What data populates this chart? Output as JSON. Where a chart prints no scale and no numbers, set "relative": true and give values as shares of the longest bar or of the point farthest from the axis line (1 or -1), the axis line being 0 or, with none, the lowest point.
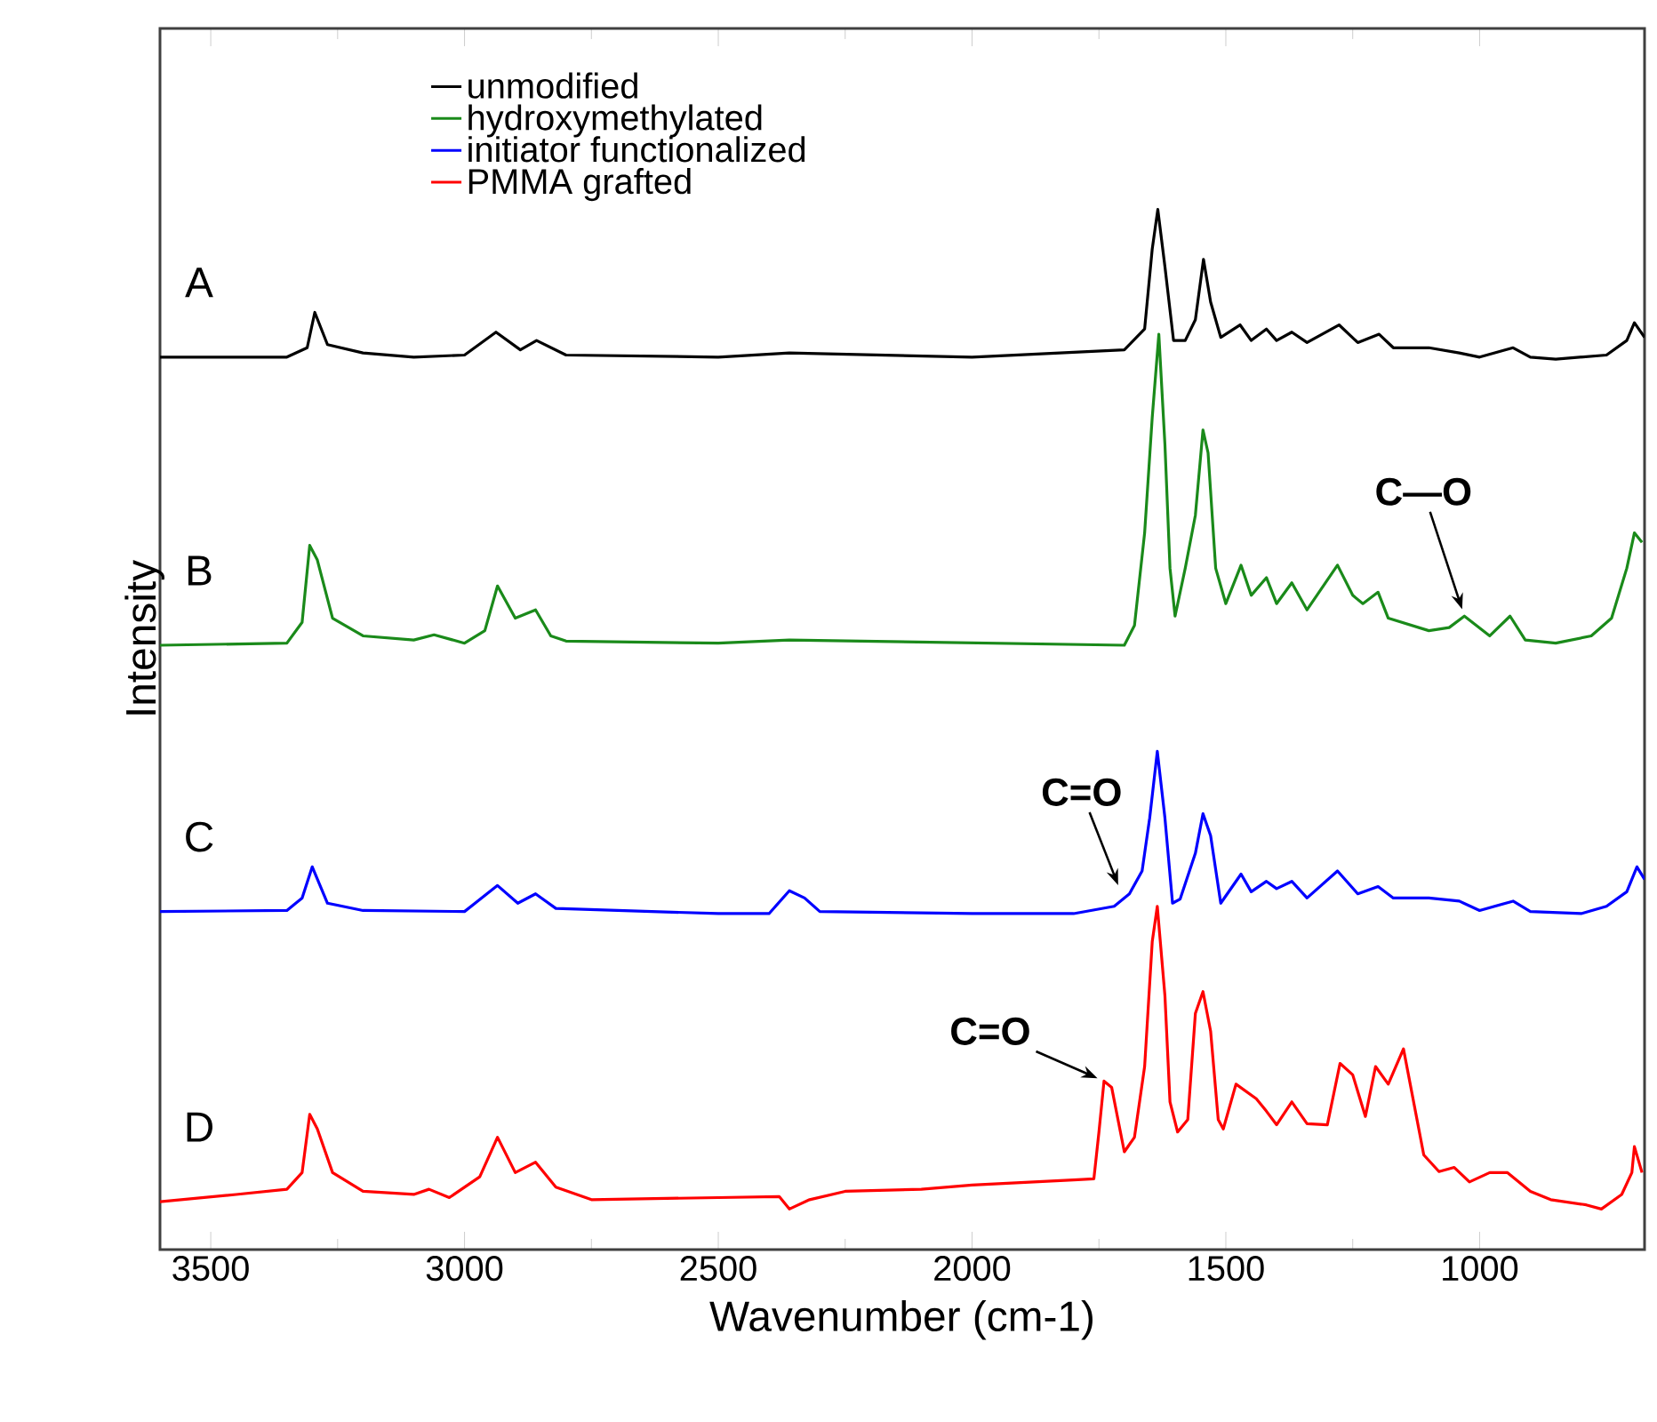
{
  "chart_data": {
    "type": "line",
    "relative": true,
    "xlabel": "Wavenumber (cm-1)",
    "ylabel": "Intensity",
    "xlim": [
      3600,
      675
    ],
    "xticks": [
      3500,
      3000,
      2500,
      2000,
      1500,
      1000
    ],
    "legend": "top",
    "grid": false,
    "marker": "none",
    "line_style": "solid",
    "annotations": [
      "A",
      "B",
      "C",
      "D",
      {
        "text": "C—O",
        "x": 1030,
        "y": 0.609
      },
      {
        "text": "C=O",
        "x": 1707,
        "y": 0.344
      },
      {
        "text": "C=O",
        "x": 1740,
        "y": 0.162
      }
    ],
    "series": [
      {
        "name": "unmodified",
        "color": "#000000",
        "x": [
          3600,
          3350,
          3310,
          3295,
          3270,
          3200,
          3100,
          3000,
          2938,
          2890,
          2858,
          2800,
          2500,
          2360,
          2000,
          1700,
          1660,
          1645,
          1634,
          1620,
          1603,
          1580,
          1560,
          1544,
          1530,
          1510,
          1472,
          1450,
          1420,
          1400,
          1370,
          1340,
          1277,
          1240,
          1198,
          1170,
          1100,
          1040,
          1000,
          934,
          900,
          850,
          750,
          710,
          695,
          675
        ],
        "values": [
          0.858,
          0.858,
          0.867,
          0.901,
          0.87,
          0.862,
          0.858,
          0.86,
          0.882,
          0.865,
          0.874,
          0.86,
          0.858,
          0.862,
          0.858,
          0.865,
          0.885,
          0.962,
          1.0,
          0.945,
          0.874,
          0.874,
          0.894,
          0.952,
          0.911,
          0.877,
          0.889,
          0.874,
          0.885,
          0.874,
          0.882,
          0.872,
          0.889,
          0.872,
          0.88,
          0.867,
          0.867,
          0.862,
          0.858,
          0.867,
          0.858,
          0.856,
          0.86,
          0.874,
          0.891,
          0.877
        ]
      },
      {
        "name": "hydroxymethylated",
        "color": "#1a8a1a",
        "x": [
          3600,
          3350,
          3320,
          3305,
          3290,
          3260,
          3200,
          3100,
          3060,
          3000,
          2960,
          2935,
          2900,
          2860,
          2830,
          2800,
          2500,
          2360,
          1700,
          1680,
          1660,
          1645,
          1632,
          1620,
          1610,
          1600,
          1580,
          1560,
          1545,
          1535,
          1520,
          1500,
          1470,
          1450,
          1420,
          1400,
          1370,
          1340,
          1280,
          1250,
          1230,
          1200,
          1180,
          1100,
          1060,
          1030,
          980,
          940,
          910,
          850,
          780,
          740,
          710,
          695,
          680
        ],
        "values": [
          0.581,
          0.583,
          0.603,
          0.677,
          0.663,
          0.607,
          0.59,
          0.586,
          0.591,
          0.583,
          0.595,
          0.638,
          0.607,
          0.615,
          0.59,
          0.585,
          0.583,
          0.586,
          0.581,
          0.6,
          0.689,
          0.8,
          0.88,
          0.774,
          0.655,
          0.609,
          0.655,
          0.706,
          0.788,
          0.766,
          0.655,
          0.621,
          0.658,
          0.629,
          0.646,
          0.621,
          0.641,
          0.615,
          0.658,
          0.629,
          0.621,
          0.632,
          0.607,
          0.595,
          0.598,
          0.609,
          0.59,
          0.609,
          0.586,
          0.583,
          0.59,
          0.607,
          0.655,
          0.689,
          0.68
        ]
      },
      {
        "name": "initiator functionalized",
        "color": "#0000ff",
        "x": [
          3600,
          3350,
          3320,
          3300,
          3270,
          3200,
          3000,
          2935,
          2895,
          2860,
          2820,
          2500,
          2400,
          2360,
          2330,
          2300,
          2000,
          1800,
          1720,
          1690,
          1665,
          1650,
          1635,
          1620,
          1605,
          1590,
          1560,
          1545,
          1530,
          1510,
          1470,
          1450,
          1420,
          1400,
          1370,
          1340,
          1280,
          1240,
          1200,
          1170,
          1100,
          1040,
          1000,
          934,
          900,
          800,
          750,
          710,
          690,
          675
        ],
        "values": [
          0.325,
          0.326,
          0.338,
          0.368,
          0.333,
          0.326,
          0.325,
          0.35,
          0.333,
          0.342,
          0.328,
          0.323,
          0.323,
          0.345,
          0.338,
          0.325,
          0.323,
          0.323,
          0.33,
          0.342,
          0.364,
          0.415,
          0.479,
          0.415,
          0.333,
          0.337,
          0.381,
          0.419,
          0.398,
          0.333,
          0.361,
          0.344,
          0.354,
          0.347,
          0.354,
          0.338,
          0.364,
          0.342,
          0.349,
          0.338,
          0.338,
          0.335,
          0.326,
          0.335,
          0.325,
          0.323,
          0.33,
          0.344,
          0.368,
          0.356
        ]
      },
      {
        "name": "PMMA grafted",
        "color": "#ff0000",
        "x": [
          3600,
          3450,
          3350,
          3320,
          3305,
          3290,
          3260,
          3200,
          3100,
          3070,
          3030,
          2970,
          2935,
          2900,
          2860,
          2820,
          2750,
          2500,
          2380,
          2360,
          2320,
          2250,
          2100,
          2000,
          1800,
          1760,
          1750,
          1740,
          1725,
          1700,
          1680,
          1660,
          1645,
          1635,
          1620,
          1610,
          1595,
          1575,
          1560,
          1545,
          1530,
          1515,
          1505,
          1480,
          1440,
          1420,
          1400,
          1370,
          1340,
          1300,
          1275,
          1250,
          1225,
          1205,
          1180,
          1150,
          1130,
          1110,
          1080,
          1050,
          1020,
          980,
          945,
          900,
          860,
          790,
          760,
          720,
          700,
          695,
          680
        ],
        "values": [
          0.046,
          0.053,
          0.058,
          0.074,
          0.13,
          0.116,
          0.074,
          0.056,
          0.053,
          0.058,
          0.05,
          0.07,
          0.108,
          0.074,
          0.084,
          0.06,
          0.048,
          0.05,
          0.051,
          0.039,
          0.048,
          0.056,
          0.058,
          0.062,
          0.067,
          0.068,
          0.113,
          0.162,
          0.156,
          0.094,
          0.108,
          0.176,
          0.296,
          0.33,
          0.244,
          0.142,
          0.113,
          0.125,
          0.227,
          0.248,
          0.21,
          0.125,
          0.116,
          0.159,
          0.145,
          0.133,
          0.12,
          0.142,
          0.121,
          0.12,
          0.179,
          0.168,
          0.128,
          0.176,
          0.159,
          0.193,
          0.142,
          0.091,
          0.075,
          0.079,
          0.065,
          0.074,
          0.074,
          0.056,
          0.048,
          0.043,
          0.039,
          0.053,
          0.074,
          0.099,
          0.074
        ]
      }
    ]
  }
}
